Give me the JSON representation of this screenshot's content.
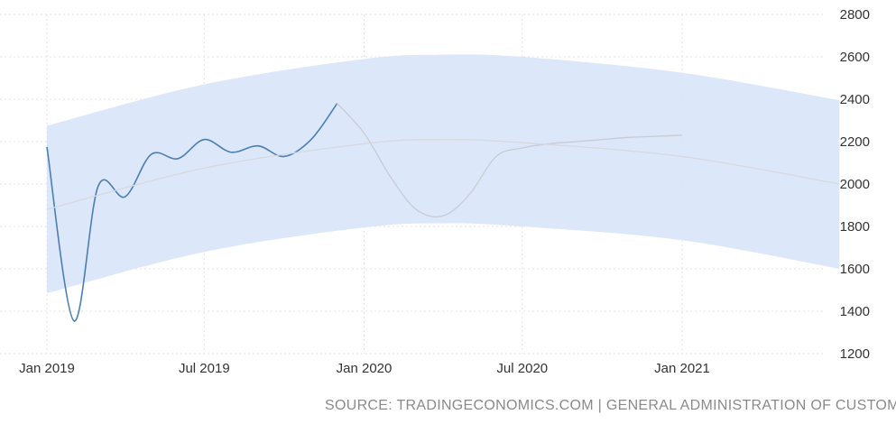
{
  "chart_data": {
    "type": "line",
    "title": "",
    "xlabel": "",
    "ylabel": "",
    "ylim": [
      1200,
      2800
    ],
    "y_ticks": [
      1200,
      1400,
      1600,
      1800,
      2000,
      2200,
      2400,
      2600,
      2800
    ],
    "x_ticks": [
      {
        "label": "Jan 2019",
        "date": "2019-01-01"
      },
      {
        "label": "Jul 2019",
        "date": "2019-07-01"
      },
      {
        "label": "Jan 2020",
        "date": "2020-01-01"
      },
      {
        "label": "Jul 2020",
        "date": "2020-07-01"
      },
      {
        "label": "Jan 2021",
        "date": "2021-01-01"
      }
    ],
    "grid": true,
    "y_axis_position": "right",
    "series": [
      {
        "role": "actual",
        "color": "#4a7fb5",
        "points": [
          [
            "2019-01-01",
            2175
          ],
          [
            "2019-02-01",
            1355
          ],
          [
            "2019-03-01",
            1990
          ],
          [
            "2019-04-01",
            1940
          ],
          [
            "2019-05-01",
            2140
          ],
          [
            "2019-06-01",
            2120
          ],
          [
            "2019-07-01",
            2210
          ],
          [
            "2019-08-01",
            2150
          ],
          [
            "2019-09-01",
            2180
          ],
          [
            "2019-10-01",
            2130
          ],
          [
            "2019-11-01",
            2210
          ],
          [
            "2019-12-01",
            2380
          ]
        ]
      },
      {
        "role": "forecast",
        "color": "#c8ccd4",
        "points": [
          [
            "2019-12-01",
            2380
          ],
          [
            "2020-01-01",
            2240
          ],
          [
            "2020-02-01",
            2030
          ],
          [
            "2020-03-01",
            1880
          ],
          [
            "2020-04-01",
            1850
          ],
          [
            "2020-05-01",
            1950
          ],
          [
            "2020-06-01",
            2130
          ],
          [
            "2020-07-01",
            2170
          ],
          [
            "2020-08-01",
            2190
          ],
          [
            "2020-09-01",
            2200
          ],
          [
            "2020-10-01",
            2210
          ],
          [
            "2020-11-01",
            2220
          ],
          [
            "2020-12-01",
            2225
          ],
          [
            "2021-01-01",
            2230
          ]
        ]
      },
      {
        "role": "trend",
        "color": "#d6d9df",
        "points": [
          [
            "2019-01-01",
            1880
          ],
          [
            "2019-07-01",
            2075
          ],
          [
            "2020-01-01",
            2190
          ],
          [
            "2020-04-01",
            2210
          ],
          [
            "2020-07-01",
            2195
          ],
          [
            "2021-01-01",
            2130
          ],
          [
            "2021-07-01",
            2000
          ]
        ]
      }
    ],
    "band": {
      "color": "#d8e4f8",
      "upper": [
        [
          "2019-01-01",
          2275
        ],
        [
          "2019-07-01",
          2470
        ],
        [
          "2020-01-01",
          2590
        ],
        [
          "2020-04-01",
          2610
        ],
        [
          "2020-07-01",
          2600
        ],
        [
          "2021-01-01",
          2525
        ],
        [
          "2021-07-01",
          2395
        ]
      ],
      "lower": [
        [
          "2019-01-01",
          1485
        ],
        [
          "2019-07-01",
          1680
        ],
        [
          "2020-01-01",
          1795
        ],
        [
          "2020-04-01",
          1815
        ],
        [
          "2020-07-01",
          1800
        ],
        [
          "2021-01-01",
          1735
        ],
        [
          "2021-07-01",
          1600
        ]
      ]
    }
  },
  "source_text": "SOURCE: TRADINGECONOMICS.COM | GENERAL ADMINISTRATION OF CUSTOMS"
}
